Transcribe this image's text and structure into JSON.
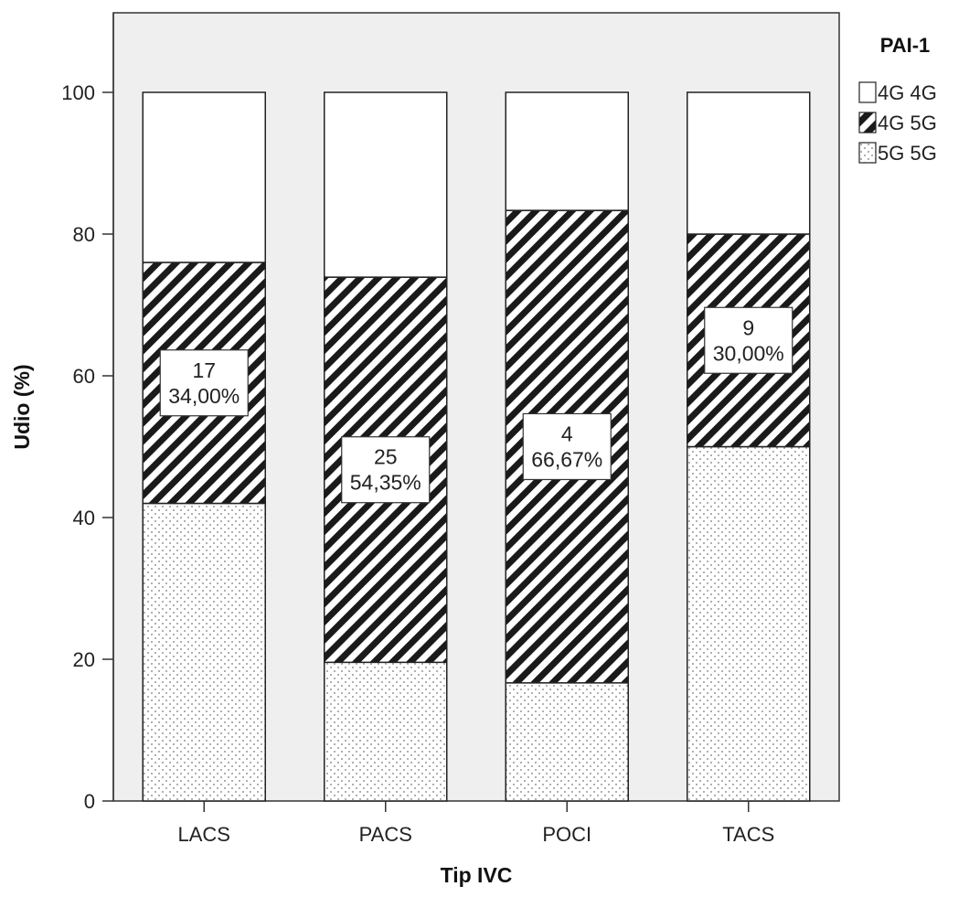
{
  "chart_data": {
    "type": "bar",
    "stacked": true,
    "xlabel": "Tip IVC",
    "ylabel": "Udio (%)",
    "ylim": [
      0,
      100
    ],
    "yticks": [
      0,
      20,
      40,
      60,
      80,
      100
    ],
    "categories": [
      "LACS",
      "PACS",
      "POCI",
      "TACS"
    ],
    "legend": {
      "title": "PAI-1",
      "position": "top-right",
      "entries": [
        {
          "name": "4G 4G",
          "pattern": "white"
        },
        {
          "name": "4G 5G",
          "pattern": "hatched"
        },
        {
          "name": "5G 5G",
          "pattern": "dotted"
        }
      ]
    },
    "series": [
      {
        "name": "5G 5G",
        "pattern": "dotted",
        "values": [
          42.0,
          19.57,
          16.67,
          50.0
        ]
      },
      {
        "name": "4G 5G",
        "pattern": "hatched",
        "values": [
          34.0,
          54.35,
          66.67,
          30.0
        ]
      },
      {
        "name": "4G 4G",
        "pattern": "white",
        "values": [
          24.0,
          26.08,
          16.66,
          20.0
        ]
      }
    ],
    "data_labels": [
      {
        "category": "LACS",
        "series": "4G 5G",
        "count": "17",
        "percent": "34,00%"
      },
      {
        "category": "PACS",
        "series": "4G 5G",
        "count": "25",
        "percent": "54,35%"
      },
      {
        "category": "POCI",
        "series": "4G 5G",
        "count": "4",
        "percent": "66,67%"
      },
      {
        "category": "TACS",
        "series": "4G 5G",
        "count": "9",
        "percent": "30,00%"
      }
    ],
    "colors": {
      "plot_background": "#efefef",
      "bar_outline": "#222222",
      "white_fill": "#ffffff"
    }
  }
}
